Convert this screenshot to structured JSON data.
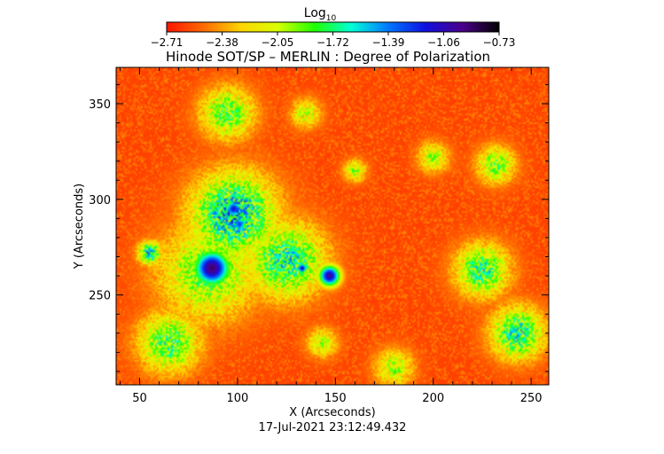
{
  "chart_data": {
    "type": "heatmap",
    "title": "Hinode SOT/SP – MERLIN : Degree of Polarization",
    "xlabel": "X (Arcseconds)",
    "ylabel": "Y (Arcseconds)",
    "timestamp": "17-Jul-2021 23:12:49.432",
    "xlim": [
      38,
      259
    ],
    "ylim": [
      203,
      369
    ],
    "xticks": [
      50,
      100,
      150,
      200,
      250
    ],
    "yticks": [
      250,
      300,
      350
    ],
    "colorbar": {
      "label_base": "Log",
      "label_sub": "10",
      "ticks": [
        "−2.71",
        "−2.38",
        "−2.05",
        "−1.72",
        "−1.39",
        "−1.06",
        "−0.73"
      ],
      "range": [
        -2.71,
        -0.73
      ],
      "colormap": [
        "#ff1500",
        "#ff6a00",
        "#ffd400",
        "#d8ff00",
        "#20ff00",
        "#00ffd8",
        "#0077ff",
        "#1010e0",
        "#4b008a",
        "#000000"
      ]
    },
    "background_level": -2.6,
    "features": [
      {
        "kind": "spot",
        "x": 87,
        "y": 264,
        "r": 10,
        "peak": -0.9
      },
      {
        "kind": "spot",
        "x": 147,
        "y": 260,
        "r": 6,
        "peak": -1.0
      },
      {
        "kind": "spot",
        "x": 133,
        "y": 264,
        "r": 3,
        "peak": -1.1
      },
      {
        "kind": "spot",
        "x": 98,
        "y": 295,
        "r": 5,
        "peak": -1.15
      },
      {
        "kind": "spot",
        "x": 101,
        "y": 287,
        "r": 4,
        "peak": -1.25
      },
      {
        "kind": "plage",
        "x": 98,
        "y": 292,
        "r": 22,
        "peak": -1.55
      },
      {
        "kind": "plage",
        "x": 125,
        "y": 268,
        "r": 20,
        "peak": -1.7
      },
      {
        "kind": "plage",
        "x": 85,
        "y": 262,
        "r": 26,
        "peak": -1.9
      },
      {
        "kind": "plage",
        "x": 95,
        "y": 345,
        "r": 14,
        "peak": -1.85
      },
      {
        "kind": "plage",
        "x": 65,
        "y": 225,
        "r": 16,
        "peak": -1.8
      },
      {
        "kind": "plage",
        "x": 225,
        "y": 263,
        "r": 14,
        "peak": -1.75
      },
      {
        "kind": "plage",
        "x": 243,
        "y": 230,
        "r": 14,
        "peak": -1.7
      },
      {
        "kind": "plage",
        "x": 232,
        "y": 318,
        "r": 10,
        "peak": -1.9
      },
      {
        "kind": "plage",
        "x": 200,
        "y": 322,
        "r": 8,
        "peak": -2.0
      },
      {
        "kind": "plage",
        "x": 160,
        "y": 315,
        "r": 6,
        "peak": -2.0
      },
      {
        "kind": "plage",
        "x": 180,
        "y": 212,
        "r": 10,
        "peak": -2.0
      },
      {
        "kind": "plage",
        "x": 143,
        "y": 225,
        "r": 8,
        "peak": -2.05
      },
      {
        "kind": "plage",
        "x": 55,
        "y": 272,
        "r": 6,
        "peak": -1.6
      },
      {
        "kind": "plage",
        "x": 135,
        "y": 345,
        "r": 8,
        "peak": -2.05
      }
    ]
  }
}
